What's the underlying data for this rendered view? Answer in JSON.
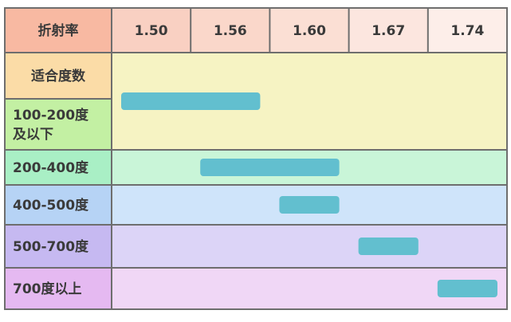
{
  "chart_data": {
    "type": "table",
    "header_label": "折射率",
    "columns": [
      "1.50",
      "1.56",
      "1.60",
      "1.67",
      "1.74"
    ],
    "section_label": "适合度数",
    "rows": [
      {
        "label_lines": [
          "100-200度",
          "及以下"
        ],
        "from_col": 0,
        "to_col": 1
      },
      {
        "label_lines": [
          "200-400度"
        ],
        "from_col": 1,
        "to_col": 2
      },
      {
        "label_lines": [
          "400-500度"
        ],
        "from_col": 2,
        "to_col": 2
      },
      {
        "label_lines": [
          "500-700度"
        ],
        "from_col": 3,
        "to_col": 3
      },
      {
        "label_lines": [
          "700度以上"
        ],
        "from_col": 4,
        "to_col": 4
      }
    ],
    "colors": {
      "header_left": "#f8b9a2",
      "header_cells": [
        "#f9d0c2",
        "#fad7ca",
        "#fbdfd4",
        "#fce6df",
        "#fdeee9"
      ],
      "section_label": "#fbdca7",
      "first_band": "#f6f3c3",
      "row_bgs": [
        "#dcf6b9",
        "#c9f5d8",
        "#cfe4fa",
        "#dcd4f7",
        "#f0d7f6"
      ],
      "row_label_bgs": [
        "#c3f0a3",
        "#a9efc5",
        "#b6d3f5",
        "#c6b9f1",
        "#e5b9f1"
      ],
      "bar": "#62bfcf",
      "border": "#6e6e6e"
    }
  }
}
